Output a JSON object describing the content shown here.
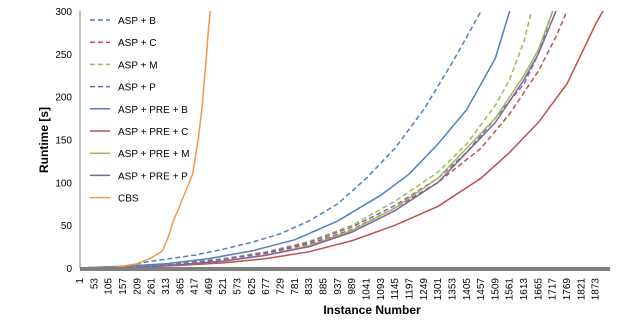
{
  "chart_data": {
    "type": "line",
    "title": "",
    "xlabel": "Instance Number",
    "ylabel": "Runtime [s]",
    "xlim": [
      1,
      1925
    ],
    "ylim": [
      0,
      300
    ],
    "y_ticks": [
      0,
      50,
      100,
      150,
      200,
      250,
      300
    ],
    "x_ticks": [
      1,
      53,
      105,
      157,
      209,
      261,
      313,
      365,
      417,
      469,
      521,
      573,
      625,
      677,
      729,
      781,
      833,
      885,
      937,
      989,
      1041,
      1093,
      1145,
      1197,
      1249,
      1301,
      1353,
      1405,
      1457,
      1509,
      1561,
      1613,
      1665,
      1717,
      1769,
      1821,
      1873
    ],
    "grid": false,
    "legend_position": "left",
    "series": [
      {
        "name": "ASP + B",
        "color": "#4f81bd",
        "dash": "dashed",
        "points": [
          [
            1,
            0
          ],
          [
            157,
            2
          ],
          [
            261,
            8
          ],
          [
            417,
            15
          ],
          [
            521,
            22
          ],
          [
            625,
            30
          ],
          [
            729,
            40
          ],
          [
            833,
            55
          ],
          [
            937,
            75
          ],
          [
            1041,
            105
          ],
          [
            1145,
            140
          ],
          [
            1249,
            185
          ],
          [
            1353,
            240
          ],
          [
            1405,
            270
          ],
          [
            1457,
            300
          ]
        ]
      },
      {
        "name": "ASP + C",
        "color": "#c0504d",
        "dash": "dashed",
        "points": [
          [
            1,
            0
          ],
          [
            209,
            2
          ],
          [
            365,
            5
          ],
          [
            521,
            10
          ],
          [
            677,
            17
          ],
          [
            833,
            28
          ],
          [
            989,
            45
          ],
          [
            1145,
            70
          ],
          [
            1301,
            100
          ],
          [
            1457,
            140
          ],
          [
            1561,
            180
          ],
          [
            1665,
            230
          ],
          [
            1729,
            270
          ],
          [
            1769,
            300
          ]
        ]
      },
      {
        "name": "ASP + M",
        "color": "#9bbb59",
        "dash": "dashed",
        "points": [
          [
            1,
            0
          ],
          [
            209,
            2
          ],
          [
            365,
            6
          ],
          [
            521,
            11
          ],
          [
            677,
            19
          ],
          [
            833,
            31
          ],
          [
            989,
            50
          ],
          [
            1145,
            78
          ],
          [
            1301,
            112
          ],
          [
            1405,
            145
          ],
          [
            1509,
            190
          ],
          [
            1561,
            220
          ],
          [
            1613,
            265
          ],
          [
            1640,
            300
          ]
        ]
      },
      {
        "name": "ASP + P",
        "color": "#8064a2",
        "dash": "dashed",
        "points": [
          [
            1,
            0
          ],
          [
            209,
            2
          ],
          [
            365,
            5
          ],
          [
            521,
            10
          ],
          [
            677,
            18
          ],
          [
            833,
            30
          ],
          [
            989,
            48
          ],
          [
            1145,
            73
          ],
          [
            1301,
            105
          ],
          [
            1405,
            135
          ],
          [
            1509,
            175
          ],
          [
            1613,
            215
          ],
          [
            1665,
            250
          ],
          [
            1717,
            300
          ]
        ]
      },
      {
        "name": "ASP + PRE + B",
        "color": "#4f81bd",
        "dash": "solid",
        "points": [
          [
            1,
            0
          ],
          [
            157,
            2
          ],
          [
            313,
            5
          ],
          [
            469,
            11
          ],
          [
            625,
            20
          ],
          [
            781,
            33
          ],
          [
            937,
            55
          ],
          [
            1093,
            85
          ],
          [
            1197,
            110
          ],
          [
            1301,
            145
          ],
          [
            1405,
            185
          ],
          [
            1509,
            245
          ],
          [
            1561,
            300
          ]
        ]
      },
      {
        "name": "ASP + PRE + C",
        "color": "#c0504d",
        "dash": "solid",
        "points": [
          [
            1,
            0
          ],
          [
            209,
            1
          ],
          [
            365,
            3
          ],
          [
            521,
            6
          ],
          [
            677,
            11
          ],
          [
            833,
            19
          ],
          [
            989,
            32
          ],
          [
            1145,
            50
          ],
          [
            1301,
            72
          ],
          [
            1457,
            105
          ],
          [
            1561,
            135
          ],
          [
            1665,
            170
          ],
          [
            1769,
            215
          ],
          [
            1821,
            250
          ],
          [
            1873,
            285
          ],
          [
            1900,
            300
          ]
        ]
      },
      {
        "name": "ASP + PRE + M",
        "color": "#9bbb59",
        "dash": "solid",
        "points": [
          [
            1,
            0
          ],
          [
            209,
            1
          ],
          [
            365,
            4
          ],
          [
            521,
            8
          ],
          [
            677,
            15
          ],
          [
            833,
            26
          ],
          [
            989,
            44
          ],
          [
            1145,
            70
          ],
          [
            1301,
            105
          ],
          [
            1405,
            140
          ],
          [
            1509,
            175
          ],
          [
            1613,
            225
          ],
          [
            1665,
            255
          ],
          [
            1717,
            300
          ]
        ]
      },
      {
        "name": "ASP + PRE + P",
        "color": "#8064a2",
        "dash": "solid",
        "points": [
          [
            1,
            0
          ],
          [
            209,
            1
          ],
          [
            365,
            4
          ],
          [
            521,
            8
          ],
          [
            677,
            15
          ],
          [
            833,
            25
          ],
          [
            989,
            42
          ],
          [
            1145,
            67
          ],
          [
            1301,
            100
          ],
          [
            1405,
            135
          ],
          [
            1509,
            170
          ],
          [
            1613,
            220
          ],
          [
            1665,
            250
          ],
          [
            1729,
            300
          ]
        ]
      },
      {
        "name": "CBS",
        "color": "#f79646",
        "dash": "solid",
        "points": [
          [
            1,
            0
          ],
          [
            105,
            0
          ],
          [
            157,
            2
          ],
          [
            209,
            5
          ],
          [
            261,
            12
          ],
          [
            300,
            20
          ],
          [
            320,
            35
          ],
          [
            340,
            55
          ],
          [
            360,
            70
          ],
          [
            385,
            90
          ],
          [
            410,
            110
          ],
          [
            430,
            150
          ],
          [
            445,
            190
          ],
          [
            458,
            240
          ],
          [
            468,
            280
          ],
          [
            474,
            300
          ]
        ]
      }
    ]
  }
}
